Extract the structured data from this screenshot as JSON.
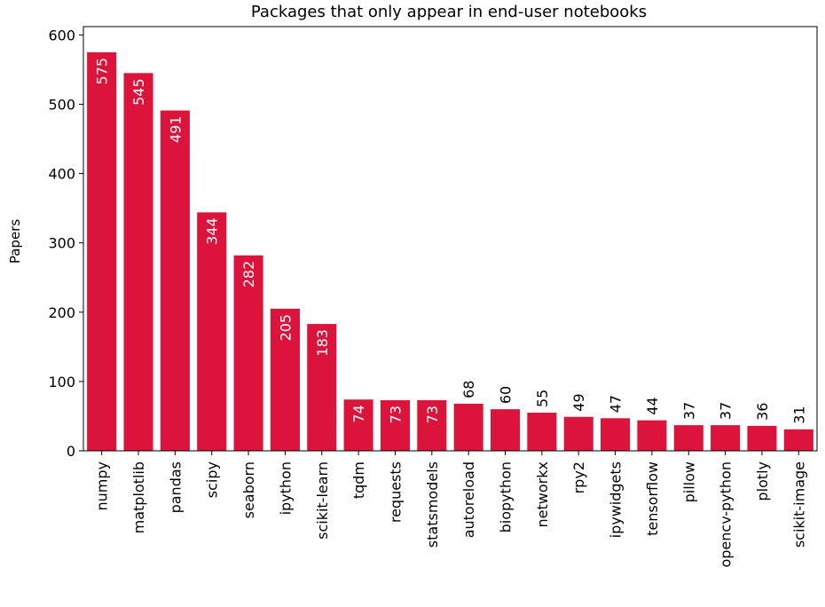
{
  "chart_data": {
    "type": "bar",
    "title": "Packages that only appear in end-user notebooks",
    "xlabel": "",
    "ylabel": "Papers",
    "ylim": [
      0,
      600
    ],
    "yticks": [
      0,
      100,
      200,
      300,
      400,
      500,
      600
    ],
    "grid": false,
    "bar_color": "#dc143c",
    "categories": [
      "numpy",
      "matplotlib",
      "pandas",
      "scipy",
      "seaborn",
      "ipython",
      "scikit-learn",
      "tqdm",
      "requests",
      "statsmodels",
      "autoreload",
      "biopython",
      "networkx",
      "rpy2",
      "ipywidgets",
      "tensorflow",
      "pillow",
      "opencv-python",
      "plotly",
      "scikit-image"
    ],
    "values": [
      575,
      545,
      491,
      344,
      282,
      205,
      183,
      74,
      73,
      73,
      68,
      60,
      55,
      49,
      47,
      44,
      37,
      37,
      36,
      31
    ]
  }
}
